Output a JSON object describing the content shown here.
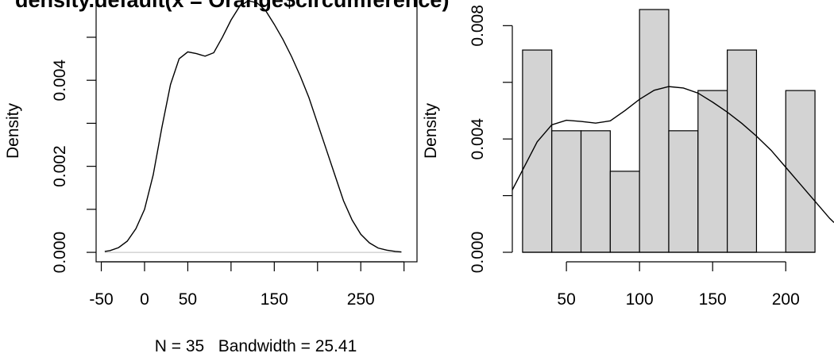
{
  "chart_data": [
    {
      "type": "line",
      "title": "density.default(x = Orange$circumference)",
      "xlabel": "N = 35   Bandwidth = 25.41",
      "ylabel": "Density",
      "x_ticks": [
        -50,
        0,
        50,
        100,
        150,
        200,
        250,
        300
      ],
      "x_tick_labels": [
        "-50",
        "0",
        "50",
        "",
        "150",
        "",
        "250",
        ""
      ],
      "y_ticks": [
        0,
        0.001,
        0.002,
        0.003,
        0.004,
        0.005
      ],
      "y_tick_labels": [
        "0.000",
        "",
        "0.002",
        "",
        "0.004",
        ""
      ],
      "xlim": [
        -56,
        315
      ],
      "ylim": [
        -0.00022,
        0.00594
      ],
      "zero_line": true,
      "series": [
        {
          "x": [
            -46,
            -40,
            -30,
            -20,
            -10,
            0,
            10,
            20,
            30,
            40,
            50,
            60,
            70,
            80,
            90,
            100,
            110,
            120,
            130,
            140,
            150,
            160,
            170,
            180,
            190,
            200,
            210,
            220,
            230,
            240,
            250,
            260,
            270,
            280,
            290,
            297
          ],
          "y": [
            2e-05,
            4e-05,
            0.00011,
            0.00026,
            0.00055,
            0.001,
            0.0018,
            0.0029,
            0.0039,
            0.0045,
            0.00466,
            0.00462,
            0.00456,
            0.00464,
            0.005,
            0.0054,
            0.00572,
            0.00585,
            0.0058,
            0.00562,
            0.0053,
            0.00495,
            0.00455,
            0.0041,
            0.0036,
            0.003,
            0.0024,
            0.0018,
            0.0012,
            0.00075,
            0.00042,
            0.00022,
            0.0001,
            5e-05,
            2e-05,
            1e-05
          ]
        }
      ]
    },
    {
      "type": "bar",
      "title": "",
      "xlabel": "",
      "ylabel": "Density",
      "bin_edges": [
        20,
        40,
        60,
        80,
        100,
        120,
        140,
        160,
        180,
        200,
        220
      ],
      "values": [
        0.00714,
        0.00429,
        0.00429,
        0.00286,
        0.00857,
        0.00429,
        0.00571,
        0.00714,
        0,
        0.00571
      ],
      "bar_fill": "#d3d3d3",
      "x_ticks": [
        50,
        100,
        150,
        200
      ],
      "x_tick_labels": [
        "50",
        "100",
        "150",
        "200"
      ],
      "y_ticks": [
        0,
        0.002,
        0.004,
        0.006,
        0.008
      ],
      "y_tick_labels": [
        "0.000",
        "",
        "0.004",
        "",
        "0.008"
      ],
      "xlim": [
        13,
        233
      ],
      "ylim": [
        0,
        0.00857
      ],
      "overlay_density": {
        "x": [
          13,
          20,
          30,
          40,
          50,
          60,
          70,
          80,
          90,
          100,
          110,
          120,
          130,
          140,
          150,
          160,
          170,
          180,
          190,
          200,
          210,
          220,
          230,
          233
        ],
        "y": [
          0.0022,
          0.0029,
          0.0039,
          0.0045,
          0.00466,
          0.00462,
          0.00456,
          0.00464,
          0.005,
          0.0054,
          0.00572,
          0.00585,
          0.0058,
          0.00562,
          0.0053,
          0.00495,
          0.00455,
          0.0041,
          0.0036,
          0.003,
          0.0024,
          0.0018,
          0.0012,
          0.00105
        ]
      }
    }
  ]
}
